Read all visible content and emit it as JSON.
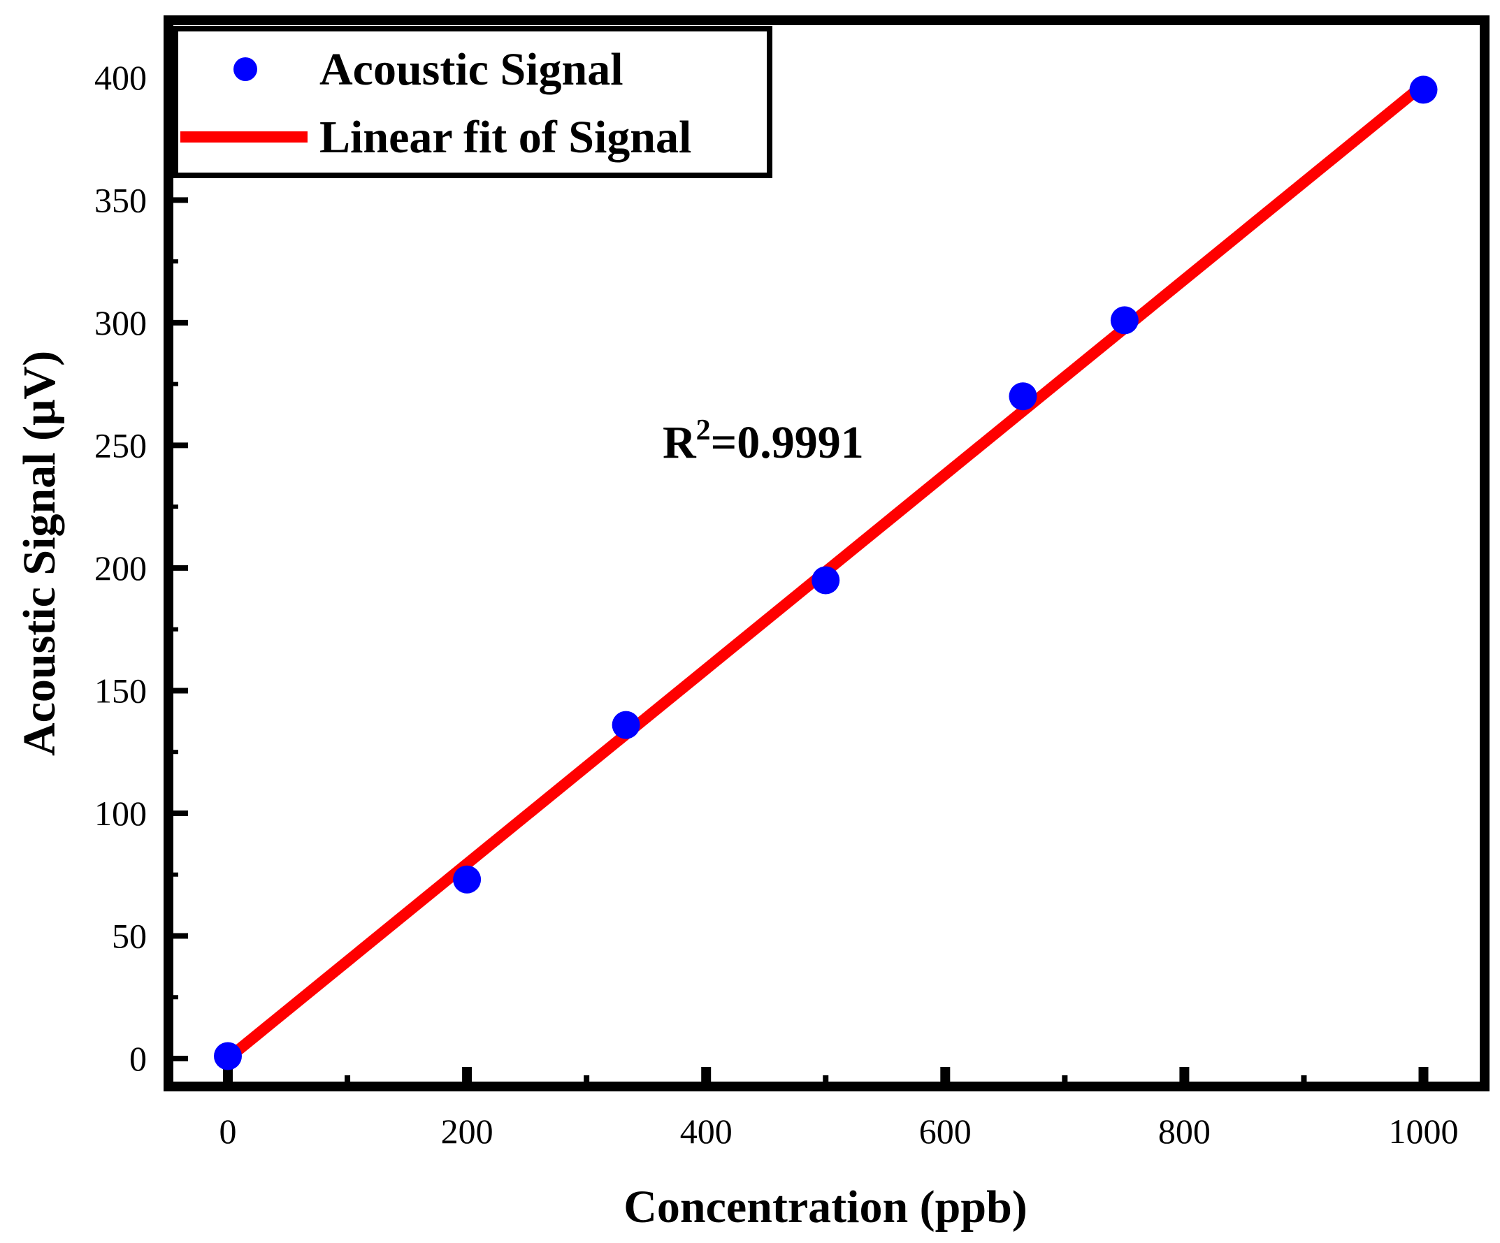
{
  "chart_data": {
    "type": "scatter",
    "title": "",
    "xlabel": "Concentration (ppb)",
    "ylabel": "Acoustic Signal (μV)",
    "xlim": [
      -50,
      1050
    ],
    "ylim": [
      -15,
      420
    ],
    "x_ticks": [
      0,
      200,
      400,
      600,
      800,
      1000
    ],
    "x_minor_ticks": [
      100,
      300,
      500,
      700,
      900
    ],
    "y_ticks": [
      0,
      50,
      100,
      150,
      200,
      250,
      300,
      350,
      400
    ],
    "y_minor_ticks": [
      25,
      75,
      125,
      175,
      225,
      275,
      325,
      375
    ],
    "series": [
      {
        "name": "Acoustic Signal",
        "kind": "scatter",
        "color": "#0000ff",
        "x": [
          0,
          200,
          333,
          500,
          665,
          750,
          1000
        ],
        "y": [
          1,
          73,
          136,
          195,
          270,
          301,
          395
        ]
      },
      {
        "name": "Linear fit of Signal",
        "kind": "line",
        "color": "#ff0000",
        "x": [
          0,
          1000
        ],
        "y": [
          0,
          397
        ]
      }
    ],
    "annotation": {
      "base": "R",
      "sup": "2",
      "value": "=0.9991"
    },
    "legend_position": "top-left"
  }
}
